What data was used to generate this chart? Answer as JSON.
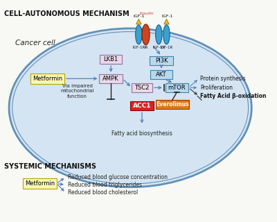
{
  "title_top": "CELL-AUTONOMOUS MECHANISM",
  "title_bottom": "SYSTEMIC MECHANISMS",
  "bg_color": "#f8f8f5",
  "cell_fill": "#d4e4f2",
  "cell_edge": "#6090b8",
  "cancer_cell_label": "Cancer cell",
  "metformin_color": "#f8f8b0",
  "metformin_edge": "#b8a000",
  "metformin_text": "Metformin",
  "lkb1_color": "#e8d8e8",
  "lkb1_edge": "#9070a0",
  "ampk_color": "#e8d8e8",
  "ampk_edge": "#9070a0",
  "tsc2_color": "#e8d8e8",
  "tsc2_edge": "#9070a0",
  "pi3k_color": "#b8d8ec",
  "pi3k_edge": "#4080a8",
  "akt_color": "#b8d8ec",
  "akt_edge": "#4080a8",
  "mtor_color": "#b8d8ec",
  "mtor_edge": "#4080a8",
  "acc1_color": "#dd2222",
  "acc1_edge": "#880000",
  "everolimus_color": "#e07818",
  "everolimus_edge": "#904000",
  "arrow_blue": "#4878b0",
  "arrow_black": "#222222",
  "receptor_blue": "#3ea0cc",
  "receptor_red": "#cc4422",
  "igf1_color": "#e8c020",
  "igf1_edge": "#907000",
  "systemic_items": [
    "Reduced blood glucose concentration",
    "Reduced blood triglycerides",
    "Reduced blood cholesterol"
  ],
  "right_items": [
    "Protein synthesis",
    "Proliferation",
    "Fatty Acid β-oxidation"
  ]
}
